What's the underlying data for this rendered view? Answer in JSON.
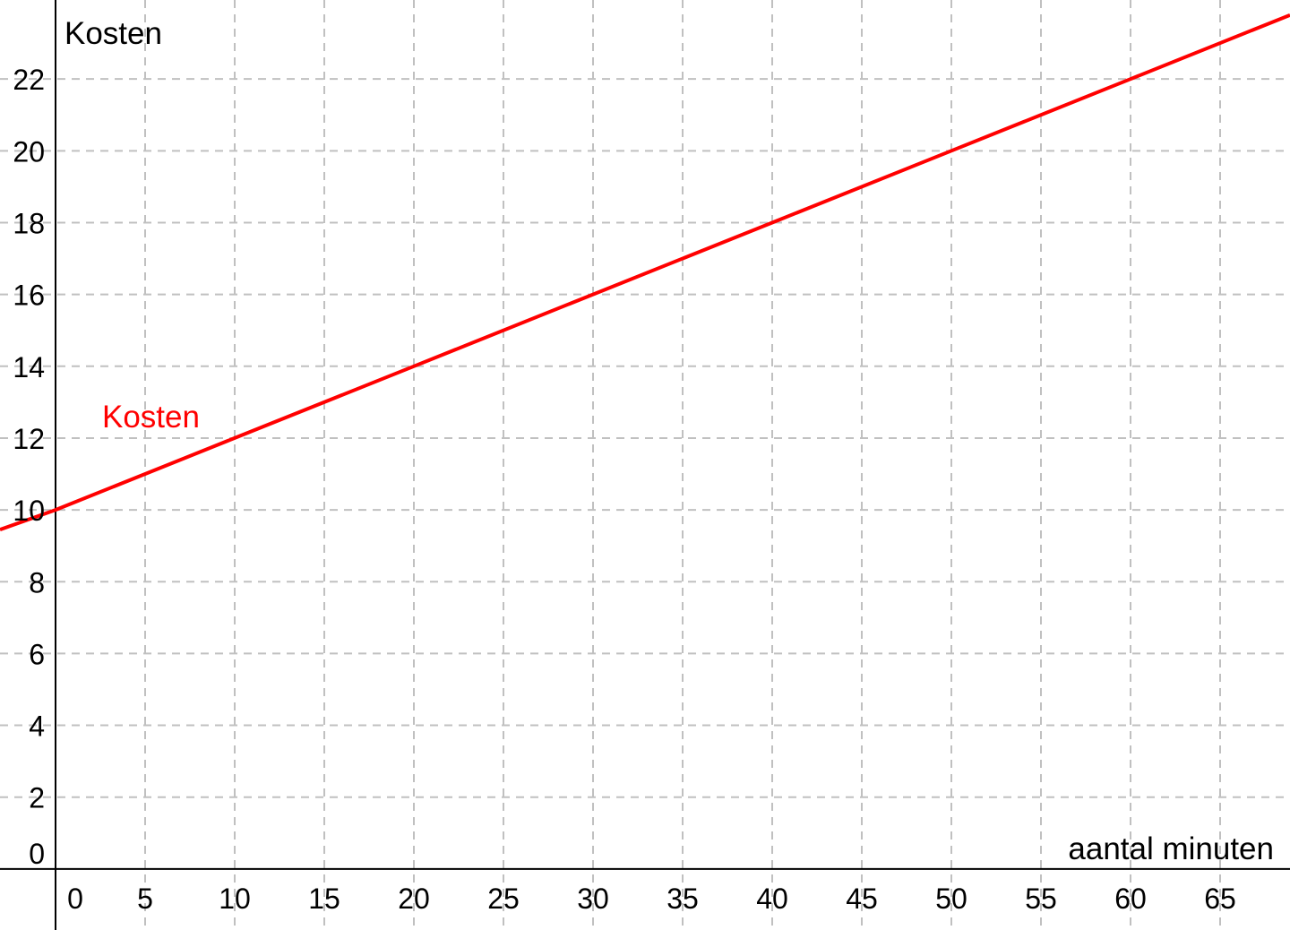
{
  "chart_data": {
    "type": "line",
    "xlabel": "aantal minuten",
    "ylabel": "Kosten",
    "xlim": [
      -3.1,
      68.9
    ],
    "ylim": [
      -1.7,
      24.2
    ],
    "x_ticks": [
      0,
      5,
      10,
      15,
      20,
      25,
      30,
      35,
      40,
      45,
      50,
      55,
      60,
      65
    ],
    "y_ticks": [
      0,
      2,
      4,
      6,
      8,
      10,
      12,
      14,
      16,
      18,
      20,
      22
    ],
    "grid": true,
    "series": [
      {
        "name": "Kosten",
        "color": "#ff0000",
        "x": [
          -3.1,
          0,
          10,
          20,
          30,
          40,
          50,
          60,
          68.9
        ],
        "y": [
          9.45,
          10,
          12,
          14,
          16,
          18,
          20,
          22,
          23.78
        ]
      }
    ]
  }
}
